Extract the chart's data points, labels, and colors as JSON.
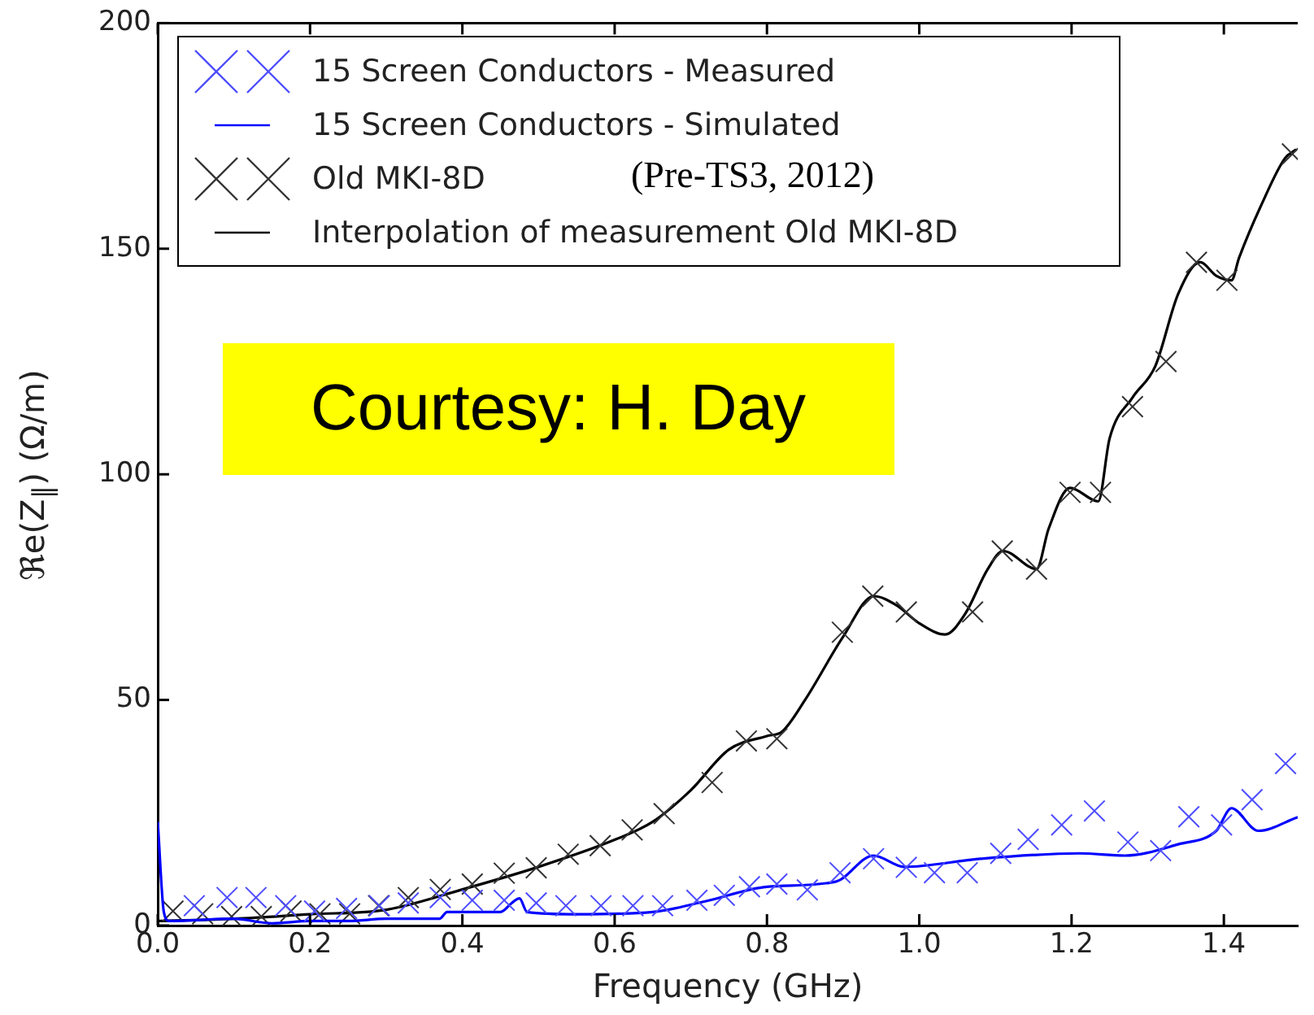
{
  "chart_data": {
    "type": "line",
    "xlabel": "Frequency (GHz)",
    "ylabel": "ℜe(Z$_{∥}$) (Ω/m)",
    "xlim": [
      0,
      1.497
    ],
    "xticks": [
      {
        "value": 0,
        "label": "0.0"
      },
      {
        "value": 0.2,
        "label": "0.2"
      },
      {
        "value": 0.4,
        "label": "0.4"
      },
      {
        "value": 0.6,
        "label": "0.6"
      },
      {
        "value": 0.8,
        "label": "0.8"
      },
      {
        "value": 1.0,
        "label": "1.0"
      },
      {
        "value": 1.2,
        "label": "1.2"
      },
      {
        "value": 1.4,
        "label": "1.4"
      }
    ],
    "ylim": [
      0,
      200
    ],
    "yticks": [
      0,
      50,
      100,
      150,
      200
    ],
    "grid": false,
    "legend": "top left",
    "annotations": [
      "(Pre-TS3, 2012)",
      "Courtesy: H. Day"
    ],
    "series": [
      {
        "name": "15 Screen Conductors - Measured",
        "type": "scatter",
        "marker": "cross",
        "color": "#4d4dff",
        "x": [
          0.048,
          0.091,
          0.129,
          0.168,
          0.206,
          0.248,
          0.291,
          0.329,
          0.371,
          0.413,
          0.455,
          0.497,
          0.536,
          0.582,
          0.624,
          0.663,
          0.708,
          0.744,
          0.777,
          0.813,
          0.853,
          0.896,
          0.94,
          0.983,
          1.02,
          1.063,
          1.107,
          1.143,
          1.187,
          1.23,
          1.274,
          1.317,
          1.354,
          1.397,
          1.437,
          1.481
        ],
        "values": [
          4.4,
          6.2,
          6.2,
          4.4,
          3.2,
          3.8,
          4.4,
          5,
          6.2,
          5.6,
          5.6,
          5,
          4.4,
          4.4,
          4.4,
          4.4,
          5.6,
          6.7,
          8.6,
          9.2,
          7.9,
          11.7,
          14.8,
          12.9,
          11.7,
          11.7,
          16,
          19.1,
          22.3,
          25.4,
          18.5,
          16.6,
          24.1,
          22.3,
          27.9,
          35.9
        ]
      },
      {
        "name": "15 Screen Conductors - Simulated",
        "type": "line",
        "marker": "none",
        "color": "#0000ff",
        "x": [
          0,
          0.008,
          0.015,
          0.1,
          0.15,
          0.2,
          0.25,
          0.3,
          0.37,
          0.38,
          0.45,
          0.465,
          0.475,
          0.485,
          0.55,
          0.65,
          0.72,
          0.8,
          0.89,
          0.94,
          0.98,
          1.08,
          1.21,
          1.27,
          1.34,
          1.39,
          1.41,
          1.445,
          1.497
        ],
        "values": [
          23,
          3,
          1,
          1.5,
          0.5,
          1,
          1,
          1.5,
          1.5,
          3,
          3,
          5,
          6,
          3,
          2.5,
          3,
          5.4,
          8.6,
          9.7,
          15.5,
          13,
          14.8,
          16,
          15.5,
          18,
          21,
          26,
          21,
          24
        ]
      },
      {
        "name": "Old MKI-8D",
        "type": "scatter",
        "marker": "cross",
        "color": "#333333",
        "x": [
          0.02,
          0.059,
          0.097,
          0.136,
          0.175,
          0.213,
          0.252,
          0.29,
          0.329,
          0.371,
          0.413,
          0.455,
          0.497,
          0.539,
          0.581,
          0.623,
          0.665,
          0.728,
          0.773,
          0.813,
          0.899,
          0.939,
          0.983,
          1.07,
          1.109,
          1.154,
          1.198,
          1.238,
          1.28,
          1.324,
          1.364,
          1.404,
          1.49
        ],
        "values": [
          3.2,
          2.6,
          2,
          2,
          3.2,
          2.6,
          2.6,
          4.4,
          6.2,
          8,
          9.2,
          11.6,
          12.8,
          15.8,
          17.7,
          21.2,
          24.8,
          31.7,
          40.9,
          41.4,
          65,
          73,
          69.5,
          69.5,
          83,
          79,
          96,
          96,
          115,
          125,
          147,
          143,
          171
        ]
      },
      {
        "name": "Interpolation of measurement Old MKI-8D",
        "type": "line",
        "marker": "none",
        "color": "#000000",
        "x": [
          0,
          0.1,
          0.2,
          0.3,
          0.4,
          0.5,
          0.6,
          0.65,
          0.7,
          0.75,
          0.8,
          0.82,
          0.85,
          0.9,
          0.94,
          0.97,
          1.0,
          1.034,
          1.06,
          1.09,
          1.11,
          1.154,
          1.17,
          1.198,
          1.235,
          1.25,
          1.28,
          1.31,
          1.34,
          1.369,
          1.39,
          1.41,
          1.42,
          1.45,
          1.48,
          1.495
        ],
        "values": [
          1,
          1.5,
          2.5,
          3.5,
          8,
          13,
          19,
          23,
          30,
          39,
          42,
          43,
          50,
          64,
          73,
          71,
          67,
          64.5,
          69,
          79,
          83,
          79,
          88,
          97,
          94,
          108,
          117,
          124,
          140,
          147,
          144,
          143,
          148,
          160,
          170,
          172
        ]
      }
    ]
  }
}
